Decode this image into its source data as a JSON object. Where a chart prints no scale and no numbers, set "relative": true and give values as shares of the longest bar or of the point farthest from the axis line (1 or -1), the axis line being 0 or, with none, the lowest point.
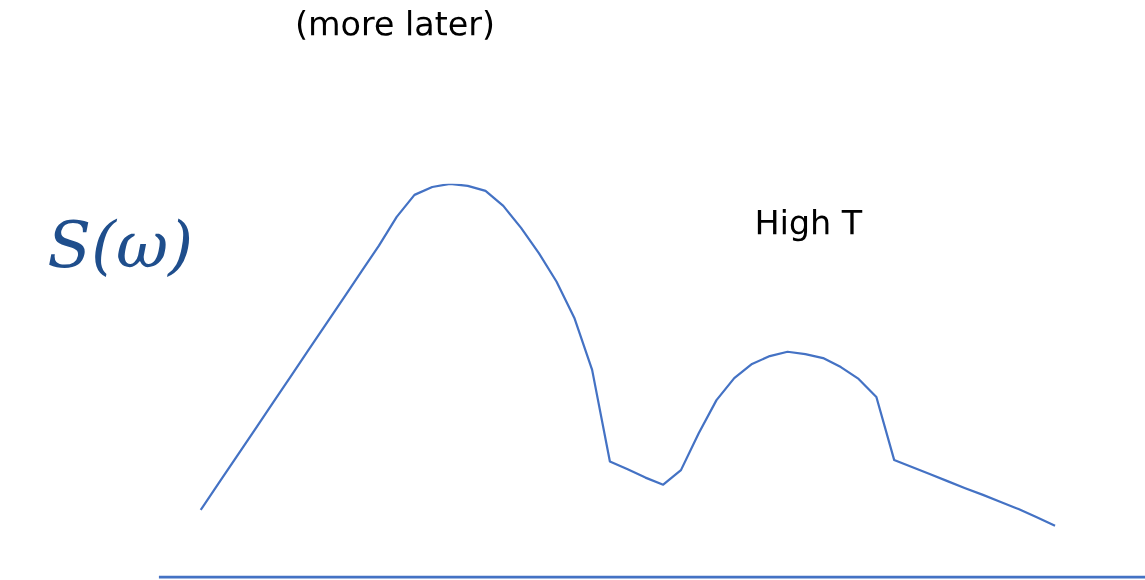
{
  "chart_data": {
    "type": "line",
    "relative": true,
    "title": "(more later)",
    "ylabel": "S(ω)",
    "annotations": [
      "High T"
    ],
    "categories": [
      null,
      null,
      null,
      null,
      null,
      null,
      null,
      null,
      null,
      null,
      null,
      null,
      null,
      null,
      null,
      null,
      null,
      null,
      null,
      null,
      null,
      null,
      null,
      null,
      null,
      null,
      null,
      null,
      null,
      null,
      null,
      null,
      null,
      null,
      null,
      null,
      null,
      null,
      null,
      null,
      null,
      null,
      null,
      null,
      null,
      null,
      null,
      null,
      null
    ],
    "series": [
      {
        "color": "#4472c4",
        "values": [
          0.173,
          0.24,
          0.307,
          0.374,
          0.441,
          0.508,
          0.575,
          0.642,
          0.709,
          0.776,
          0.843,
          0.916,
          0.972,
          0.992,
          1.0,
          0.995,
          0.982,
          0.944,
          0.888,
          0.824,
          0.751,
          0.659,
          0.527,
          0.294,
          0.274,
          0.253,
          0.235,
          0.272,
          0.366,
          0.45,
          0.506,
          0.542,
          0.562,
          0.573,
          0.567,
          0.557,
          0.534,
          0.504,
          0.458,
          0.298,
          0.28,
          0.262,
          0.244,
          0.226,
          0.209,
          0.191,
          0.173,
          0.153,
          0.132
        ]
      }
    ],
    "legend": false,
    "marker": "none",
    "line_style": "solid"
  }
}
